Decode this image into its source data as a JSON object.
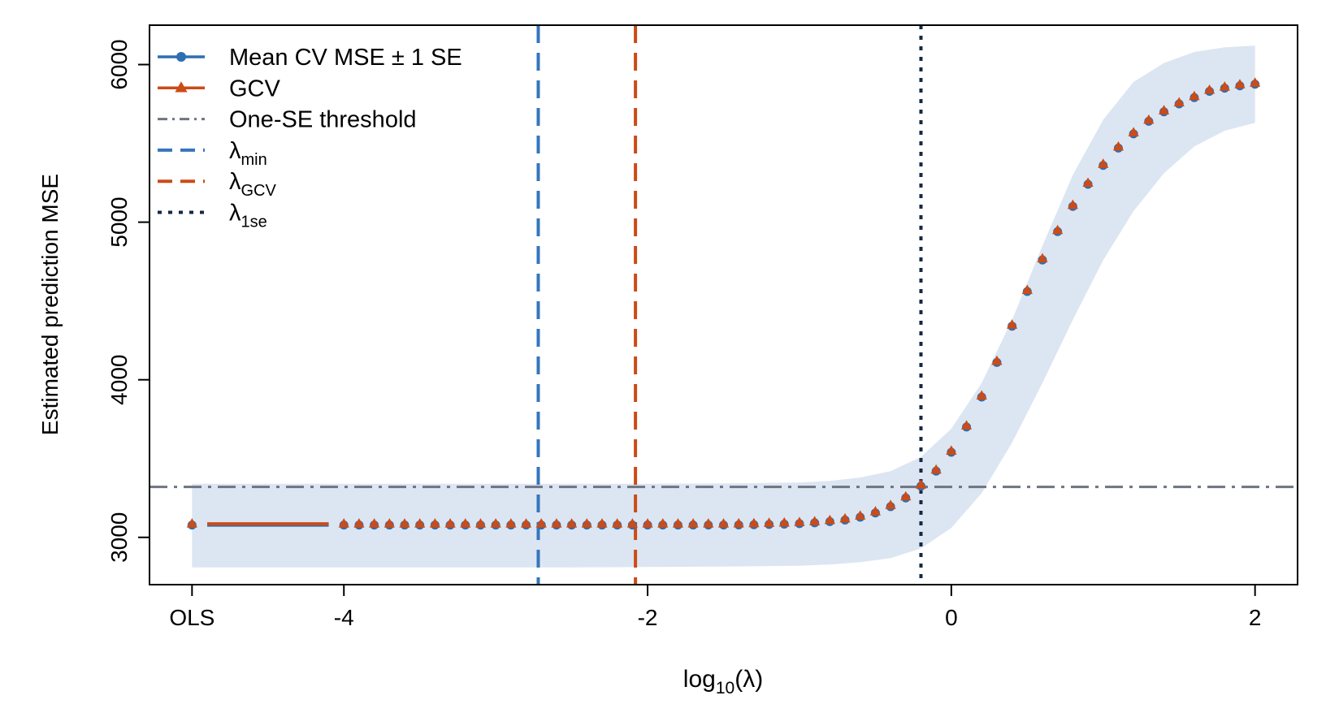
{
  "chart_data": {
    "type": "line",
    "xlabel": "log10(λ)",
    "ylabel": "Estimated prediction MSE",
    "xlim": [
      -5.28,
      2.28
    ],
    "ylim": [
      2700,
      6250
    ],
    "x_ticks": [
      {
        "value": -5,
        "label": "OLS"
      },
      {
        "value": -4,
        "label": "-4"
      },
      {
        "value": -2,
        "label": "-2"
      },
      {
        "value": 0,
        "label": "0"
      },
      {
        "value": 2,
        "label": "2"
      }
    ],
    "y_ticks": [
      3000,
      4000,
      5000,
      6000
    ],
    "legend_position": "top-left",
    "legend": [
      {
        "key": "cv",
        "label": "Mean CV MSE  ±  1 SE"
      },
      {
        "key": "gcv",
        "label": "GCV"
      },
      {
        "key": "onese",
        "label": "One-SE threshold"
      },
      {
        "key": "lmin",
        "label": "λ",
        "sub": "min"
      },
      {
        "key": "lgcv",
        "label": "λ",
        "sub": "GCV"
      },
      {
        "key": "l1se",
        "label": "λ",
        "sub": "1se"
      }
    ],
    "series": [
      {
        "key": "cv",
        "marker": "circle",
        "ols": 3078,
        "x": [
          -4,
          -3.9,
          -3.8,
          -3.7,
          -3.6,
          -3.5,
          -3.4,
          -3.3,
          -3.2,
          -3.1,
          -3.0,
          -2.9,
          -2.8,
          -2.7,
          -2.6,
          -2.5,
          -2.4,
          -2.3,
          -2.2,
          -2.1,
          -2.0,
          -1.9,
          -1.8,
          -1.7,
          -1.6,
          -1.5,
          -1.4,
          -1.3,
          -1.2,
          -1.1,
          -1.0,
          -0.9,
          -0.8,
          -0.7,
          -0.6,
          -0.5,
          -0.4,
          -0.3,
          -0.2,
          -0.1,
          0.0,
          0.1,
          0.2,
          0.3,
          0.4,
          0.5,
          0.6,
          0.7,
          0.8,
          0.9,
          1.0,
          1.1,
          1.2,
          1.3,
          1.4,
          1.5,
          1.6,
          1.7,
          1.8,
          1.9,
          2.0
        ],
        "values": [
          3078,
          3078,
          3078,
          3078,
          3078,
          3078,
          3078,
          3078,
          3078,
          3078,
          3078,
          3078,
          3078,
          3078,
          3078,
          3078,
          3078,
          3078,
          3078,
          3078,
          3078,
          3078,
          3078,
          3078,
          3078,
          3078,
          3079,
          3080,
          3082,
          3084,
          3087,
          3092,
          3100,
          3110,
          3128,
          3155,
          3195,
          3250,
          3325,
          3420,
          3540,
          3700,
          3890,
          4110,
          4340,
          4560,
          4760,
          4940,
          5100,
          5240,
          5360,
          5470,
          5560,
          5640,
          5700,
          5750,
          5790,
          5830,
          5850,
          5865,
          5875
        ]
      },
      {
        "key": "gcv",
        "marker": "triangle",
        "ols": 3086,
        "x": [
          -4,
          -3.9,
          -3.8,
          -3.7,
          -3.6,
          -3.5,
          -3.4,
          -3.3,
          -3.2,
          -3.1,
          -3.0,
          -2.9,
          -2.8,
          -2.7,
          -2.6,
          -2.5,
          -2.4,
          -2.3,
          -2.2,
          -2.1,
          -2.0,
          -1.9,
          -1.8,
          -1.7,
          -1.6,
          -1.5,
          -1.4,
          -1.3,
          -1.2,
          -1.1,
          -1.0,
          -0.9,
          -0.8,
          -0.7,
          -0.6,
          -0.5,
          -0.4,
          -0.3,
          -0.2,
          -0.1,
          0.0,
          0.1,
          0.2,
          0.3,
          0.4,
          0.5,
          0.6,
          0.7,
          0.8,
          0.9,
          1.0,
          1.1,
          1.2,
          1.3,
          1.4,
          1.5,
          1.6,
          1.7,
          1.8,
          1.9,
          2.0
        ],
        "values": [
          3086,
          3086,
          3086,
          3086,
          3086,
          3086,
          3086,
          3086,
          3086,
          3086,
          3086,
          3086,
          3086,
          3086,
          3086,
          3086,
          3086,
          3086,
          3086,
          3086,
          3086,
          3086,
          3086,
          3086,
          3086,
          3086,
          3087,
          3088,
          3090,
          3092,
          3095,
          3100,
          3108,
          3118,
          3136,
          3163,
          3203,
          3258,
          3333,
          3428,
          3548,
          3708,
          3898,
          4118,
          4348,
          4568,
          4768,
          4948,
          5108,
          5248,
          5368,
          5478,
          5568,
          5648,
          5708,
          5758,
          5798,
          5838,
          5858,
          5873,
          5883
        ]
      }
    ],
    "se_band": {
      "key": "cv_se",
      "x": [
        -5,
        -4.5,
        -4,
        -3.5,
        -3,
        -2.5,
        -2,
        -1.5,
        -1,
        -0.8,
        -0.6,
        -0.4,
        -0.2,
        0,
        0.2,
        0.4,
        0.6,
        0.8,
        1.0,
        1.2,
        1.4,
        1.6,
        1.8,
        2.0
      ],
      "lower": [
        2810,
        2810,
        2810,
        2810,
        2810,
        2810,
        2812,
        2815,
        2820,
        2828,
        2842,
        2868,
        2930,
        3060,
        3280,
        3600,
        3980,
        4380,
        4760,
        5070,
        5310,
        5480,
        5580,
        5630
      ],
      "upper": [
        3340,
        3340,
        3340,
        3340,
        3340,
        3340,
        3340,
        3342,
        3348,
        3358,
        3380,
        3420,
        3510,
        3690,
        3980,
        4380,
        4850,
        5300,
        5650,
        5890,
        6010,
        6080,
        6110,
        6120
      ]
    },
    "one_se_threshold": 3320,
    "vertical_lines": [
      {
        "key": "lmin",
        "x": -2.72
      },
      {
        "key": "lgcv",
        "x": -2.08
      },
      {
        "key": "l1se",
        "x": -0.2
      }
    ],
    "colors": {
      "cv": "#2e6eb3",
      "gcv": "#cc4b16",
      "band": "#dce6f2",
      "onese": "#6e7580",
      "lmin": "#3576bd",
      "lgcv": "#cc4b16",
      "l1se": "#142842"
    }
  }
}
